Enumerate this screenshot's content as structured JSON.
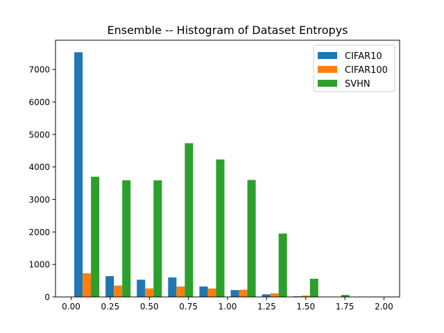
{
  "chart_data": {
    "type": "bar",
    "title": "Ensemble -- Histogram of Dataset Entropys",
    "xlabel": "",
    "ylabel": "",
    "bin_edges": [
      0.0,
      0.2,
      0.4,
      0.6,
      0.8,
      1.0,
      1.2,
      1.4,
      1.6,
      1.8,
      2.0
    ],
    "xlim": [
      -0.1,
      2.1
    ],
    "ylim": [
      0,
      7900
    ],
    "xticks": [
      0.0,
      0.25,
      0.5,
      0.75,
      1.0,
      1.25,
      1.5,
      1.75,
      2.0
    ],
    "xtick_labels": [
      "0.00",
      "0.25",
      "0.50",
      "0.75",
      "1.00",
      "1.25",
      "1.50",
      "1.75",
      "2.00"
    ],
    "yticks": [
      0,
      1000,
      2000,
      3000,
      4000,
      5000,
      6000,
      7000
    ],
    "ytick_labels": [
      "0",
      "1000",
      "2000",
      "3000",
      "4000",
      "5000",
      "6000",
      "7000"
    ],
    "legend_position": "top-right",
    "grid": false,
    "series": [
      {
        "name": "CIFAR10",
        "color": "#1f77b4",
        "values": [
          7530,
          640,
          530,
          600,
          320,
          210,
          80,
          20,
          0,
          0
        ]
      },
      {
        "name": "CIFAR100",
        "color": "#ff7f0e",
        "values": [
          730,
          350,
          260,
          320,
          260,
          220,
          110,
          40,
          0,
          0
        ]
      },
      {
        "name": "SVHN",
        "color": "#2ca02c",
        "values": [
          3700,
          3590,
          3590,
          4730,
          4230,
          3600,
          1950,
          560,
          60,
          0
        ]
      }
    ]
  }
}
